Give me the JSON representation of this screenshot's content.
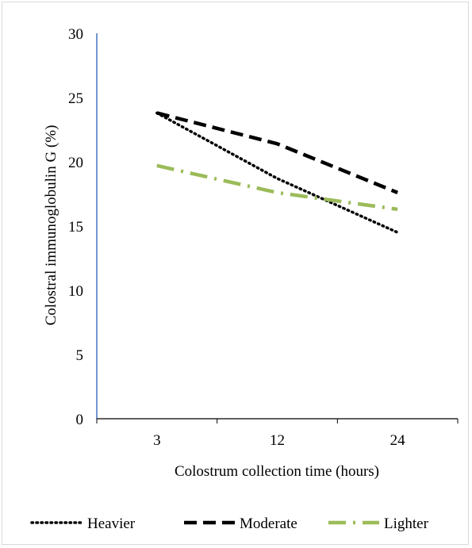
{
  "chart_data": {
    "type": "line",
    "title": "",
    "xlabel": "Colostrum collection time (hours)",
    "ylabel": "Colostral immunoglobulin G  (%)",
    "categories": [
      "3",
      "12",
      "24"
    ],
    "ylim": [
      0,
      30
    ],
    "yticks": [
      "0",
      "5",
      "10",
      "15",
      "20",
      "25",
      "30"
    ],
    "grid": false,
    "legend_position": "bottom",
    "series": [
      {
        "name": "Heavier",
        "values": [
          23.8,
          18.7,
          14.5
        ],
        "color": "#000000",
        "dash": "dotted"
      },
      {
        "name": "Moderate",
        "values": [
          23.8,
          21.4,
          17.6
        ],
        "color": "#000000",
        "dash": "long-dash"
      },
      {
        "name": "Lighter",
        "values": [
          19.7,
          17.6,
          16.3
        ],
        "color": "#9bbb59",
        "dash": "long-dash-dot"
      }
    ],
    "colors": {
      "y_axis_line": "#4472c4",
      "x_axis_line": "#000000"
    }
  }
}
